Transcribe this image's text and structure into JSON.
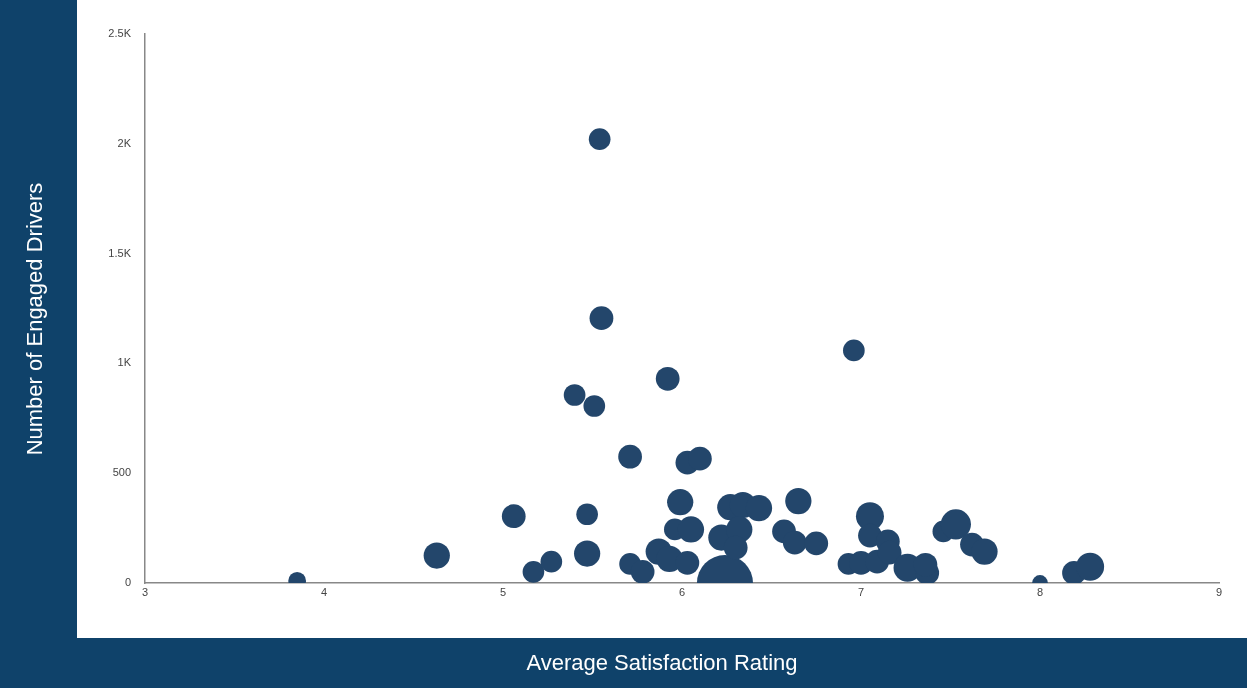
{
  "chart_data": {
    "type": "bubble",
    "xlabel": "Average Satisfaction Rating",
    "ylabel": "Number of Engaged Drivers",
    "xlim": [
      3,
      9
    ],
    "xticks": [
      3,
      4,
      5,
      6,
      7,
      8,
      9
    ],
    "ylim": [
      0,
      2500
    ],
    "yticks": [
      0,
      500,
      {
        "value": 1000,
        "label": "1K"
      },
      {
        "value": 1500,
        "label": "1.5K"
      },
      {
        "value": 2000,
        "label": "2K"
      },
      {
        "value": 2500,
        "label": "2.5K"
      }
    ],
    "grid": false,
    "legend": false,
    "series": [
      {
        "color": "#23466b",
        "x": [
          3.85,
          4.63,
          5.06,
          5.17,
          5.27,
          5.47,
          5.47,
          5.71,
          5.71,
          5.78,
          5.87,
          5.93,
          6.03,
          5.99,
          5.96,
          6.05,
          6.03,
          6.1,
          6.24,
          6.27,
          6.34,
          6.43,
          6.22,
          6.32,
          6.3,
          6.57,
          6.63,
          6.65,
          6.75,
          6.93,
          6.96,
          7.05,
          7.05,
          7.15,
          7.0,
          7.09,
          7.16,
          7.26,
          7.37,
          7.36,
          7.46,
          7.53,
          7.62,
          7.69,
          8.0,
          8.19,
          8.28,
          5.54,
          5.55,
          5.4,
          5.51,
          5.92
        ],
        "values": [
          10,
          125,
          304,
          51,
          97,
          313,
          134,
          575,
          87,
          51,
          143,
          110,
          92,
          368,
          244,
          244,
          548,
          566,
          0,
          345,
          355,
          341,
          207,
          244,
          161,
          235,
          184,
          373,
          180,
          87,
          1059,
          304,
          216,
          189,
          92,
          97,
          138,
          69,
          46,
          83,
          235,
          267,
          175,
          143,
          0,
          46,
          74,
          2021,
          1206,
          856,
          806,
          930
        ],
        "sizes": [
          0.1,
          0.22,
          0.18,
          0.15,
          0.15,
          0.15,
          0.22,
          0.18,
          0.15,
          0.18,
          0.22,
          0.22,
          0.18,
          0.22,
          0.15,
          0.22,
          0.18,
          0.18,
          1,
          0.22,
          0.22,
          0.22,
          0.22,
          0.22,
          0.18,
          0.18,
          0.18,
          0.22,
          0.18,
          0.15,
          0.15,
          0.25,
          0.18,
          0.18,
          0.18,
          0.18,
          0.18,
          0.25,
          0.18,
          0.18,
          0.15,
          0.29,
          0.18,
          0.22,
          0.08,
          0.18,
          0.25,
          0.15,
          0.18,
          0.15,
          0.15,
          0.18
        ]
      }
    ]
  }
}
